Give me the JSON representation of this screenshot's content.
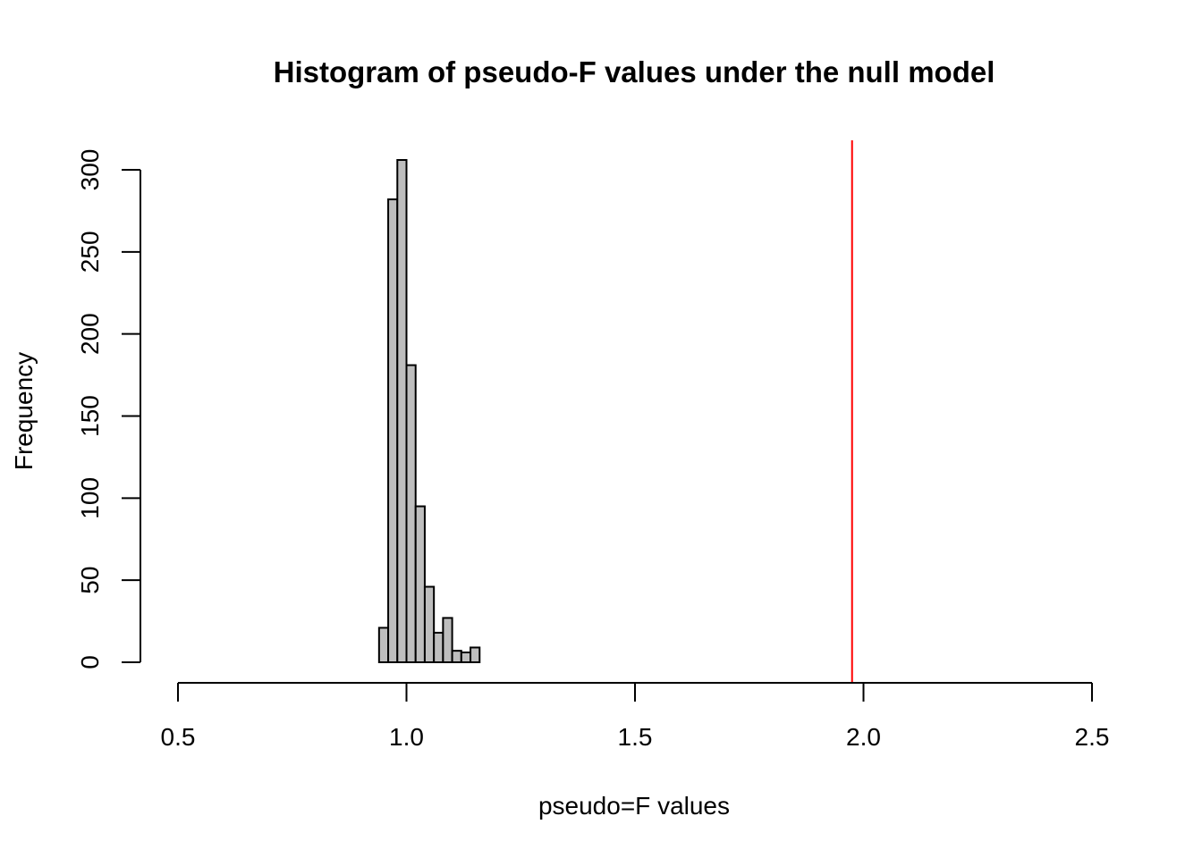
{
  "chart_data": {
    "type": "bar",
    "title": "Histogram of pseudo-F values under the null model",
    "xlabel": "pseudo=F values",
    "ylabel": "Frequency",
    "xlim": [
      0.5,
      2.5
    ],
    "ylim": [
      0,
      300
    ],
    "x_ticks": [
      "0.5",
      "1.0",
      "1.5",
      "2.0",
      "2.5"
    ],
    "y_ticks": [
      "0",
      "50",
      "100",
      "150",
      "200",
      "250",
      "300"
    ],
    "bins": [
      {
        "start": 0.94,
        "end": 0.96,
        "count": 21
      },
      {
        "start": 0.96,
        "end": 0.98,
        "count": 282
      },
      {
        "start": 0.98,
        "end": 1.0,
        "count": 306
      },
      {
        "start": 1.0,
        "end": 1.02,
        "count": 181
      },
      {
        "start": 1.02,
        "end": 1.04,
        "count": 95
      },
      {
        "start": 1.04,
        "end": 1.06,
        "count": 46
      },
      {
        "start": 1.06,
        "end": 1.08,
        "count": 18
      },
      {
        "start": 1.08,
        "end": 1.1,
        "count": 27
      },
      {
        "start": 1.1,
        "end": 1.12,
        "count": 7
      },
      {
        "start": 1.12,
        "end": 1.14,
        "count": 6
      },
      {
        "start": 1.14,
        "end": 1.16,
        "count": 9
      }
    ],
    "reference_line": {
      "x": 1.975,
      "color": "#ff0000"
    },
    "bar_color": "#bebebe",
    "grid": false,
    "legend": "none"
  }
}
